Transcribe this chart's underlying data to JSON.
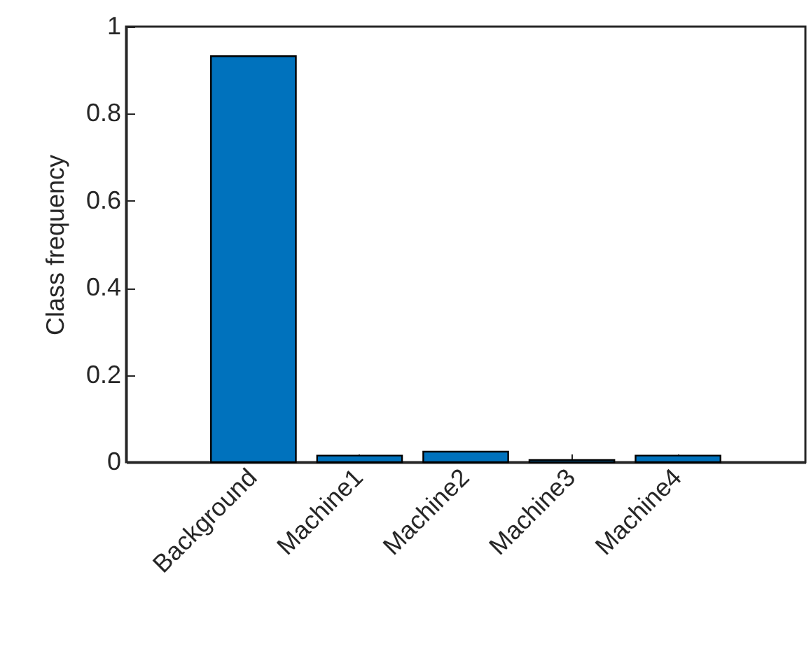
{
  "chart_data": {
    "type": "bar",
    "ylabel": "Class frequency",
    "categories": [
      "Background",
      "Machine1",
      "Machine2",
      "Machine3",
      "Machine4"
    ],
    "values": [
      0.932,
      0.015,
      0.024,
      0.005,
      0.015
    ],
    "color": "#0072bd",
    "ylim": [
      0,
      1
    ],
    "yticks": [
      0,
      0.2,
      0.4,
      0.6,
      0.8,
      1
    ]
  }
}
